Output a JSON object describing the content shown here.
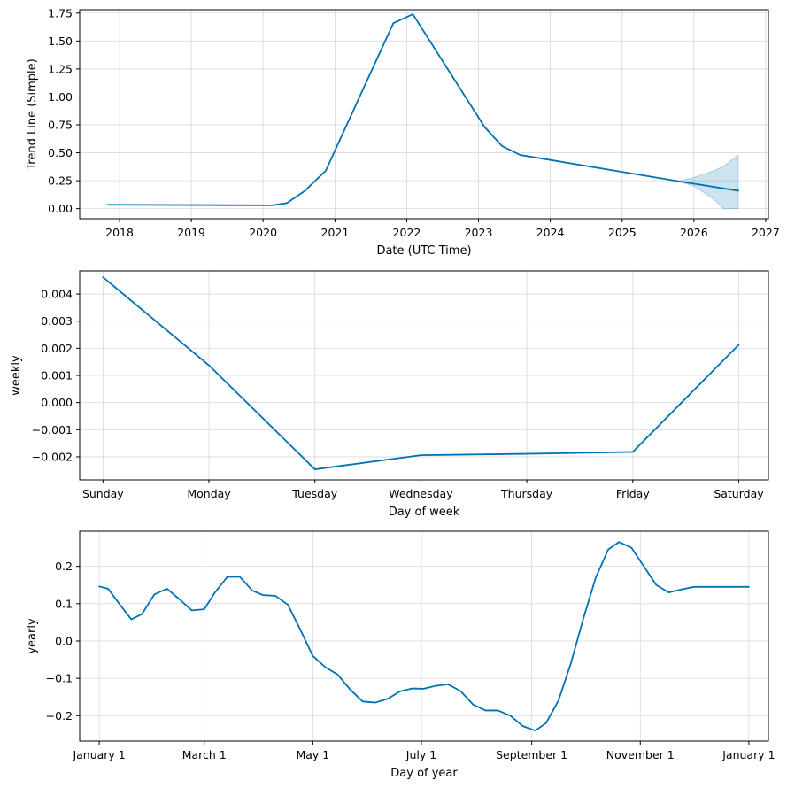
{
  "colors": {
    "line": "#0072B2",
    "band": "#0072B2",
    "grid": "#d9d9d9",
    "axes": "#000000",
    "background": "#ffffff"
  },
  "chart_data": [
    {
      "type": "line",
      "xlabel": "Date (UTC Time)",
      "ylabel": "Trend Line (Simple)",
      "x_axis": "date",
      "xlim": [
        "2017-06-12",
        "2027-01-15"
      ],
      "ylim": [
        -0.09,
        1.78
      ],
      "grid": true,
      "x_ticks": [
        {
          "value": "2018-01-01",
          "label": "2018"
        },
        {
          "value": "2019-01-01",
          "label": "2019"
        },
        {
          "value": "2020-01-01",
          "label": "2020"
        },
        {
          "value": "2021-01-01",
          "label": "2021"
        },
        {
          "value": "2022-01-01",
          "label": "2022"
        },
        {
          "value": "2023-01-01",
          "label": "2023"
        },
        {
          "value": "2024-01-01",
          "label": "2024"
        },
        {
          "value": "2025-01-01",
          "label": "2025"
        },
        {
          "value": "2026-01-01",
          "label": "2026"
        },
        {
          "value": "2027-01-01",
          "label": "2027"
        }
      ],
      "y_ticks": [
        {
          "value": 0.0,
          "label": "0.00"
        },
        {
          "value": 0.25,
          "label": "0.25"
        },
        {
          "value": 0.5,
          "label": "0.50"
        },
        {
          "value": 0.75,
          "label": "0.75"
        },
        {
          "value": 1.0,
          "label": "1.00"
        },
        {
          "value": 1.25,
          "label": "1.25"
        },
        {
          "value": 1.5,
          "label": "1.50"
        },
        {
          "value": 1.75,
          "label": "1.75"
        }
      ],
      "series": [
        {
          "x": [
            "2017-11-01",
            "2020-02-15",
            "2020-05-01",
            "2020-08-01",
            "2020-11-15",
            "2021-10-25",
            "2022-02-01",
            "2023-02-01",
            "2023-05-01",
            "2023-08-01",
            "2025-10-15",
            "2026-08-15"
          ],
          "y": [
            0.035,
            0.03,
            0.05,
            0.16,
            0.34,
            1.66,
            1.74,
            0.73,
            0.56,
            0.48,
            0.245,
            0.16
          ]
        }
      ],
      "uncertainty_band": {
        "x": [
          "2025-10-15",
          "2026-01-01",
          "2026-04-01",
          "2026-06-01",
          "2026-08-15"
        ],
        "upper": [
          0.245,
          0.28,
          0.33,
          0.38,
          0.48
        ],
        "lower": [
          0.245,
          0.2,
          0.1,
          0.0,
          0.0
        ]
      }
    },
    {
      "type": "line",
      "xlabel": "Day of week",
      "ylabel": "weekly",
      "x_axis": "category",
      "xlim": [
        -0.22,
        6.28
      ],
      "ylim": [
        -0.00285,
        0.00485
      ],
      "grid": true,
      "categories": [
        "Sunday",
        "Monday",
        "Tuesday",
        "Wednesday",
        "Thursday",
        "Friday",
        "Saturday"
      ],
      "y_ticks": [
        {
          "value": -0.002,
          "label": "−0.002"
        },
        {
          "value": -0.001,
          "label": "−0.001"
        },
        {
          "value": 0.0,
          "label": "0.000"
        },
        {
          "value": 0.001,
          "label": "0.001"
        },
        {
          "value": 0.002,
          "label": "0.002"
        },
        {
          "value": 0.003,
          "label": "0.003"
        },
        {
          "value": 0.004,
          "label": "0.004"
        }
      ],
      "series": [
        {
          "values": [
            0.00462,
            0.00137,
            -0.00246,
            -0.00194,
            -0.00189,
            -0.00182,
            0.00213
          ]
        }
      ]
    },
    {
      "type": "line",
      "xlabel": "Day of year",
      "ylabel": "yearly",
      "x_axis": "day_of_year",
      "xlim": [
        -11,
        376
      ],
      "ylim": [
        -0.268,
        0.294
      ],
      "grid": true,
      "x_ticks": [
        {
          "value": 0,
          "label": "January 1"
        },
        {
          "value": 59,
          "label": "March 1"
        },
        {
          "value": 120,
          "label": "May 1"
        },
        {
          "value": 181,
          "label": "July 1"
        },
        {
          "value": 243,
          "label": "September 1"
        },
        {
          "value": 304,
          "label": "November 1"
        },
        {
          "value": 365,
          "label": "January 1"
        }
      ],
      "y_ticks": [
        {
          "value": -0.2,
          "label": "−0.2"
        },
        {
          "value": -0.1,
          "label": "−0.1"
        },
        {
          "value": 0.0,
          "label": "0.0"
        },
        {
          "value": 0.1,
          "label": "0.1"
        },
        {
          "value": 0.2,
          "label": "0.2"
        }
      ],
      "series": [
        {
          "x": [
            0,
            5,
            12,
            18,
            24,
            31,
            38,
            45,
            52,
            59,
            65,
            72,
            79,
            86,
            92,
            99,
            106,
            113,
            120,
            127,
            134,
            141,
            148,
            155,
            162,
            169,
            176,
            182,
            189,
            196,
            203,
            210,
            217,
            224,
            231,
            238,
            245,
            251,
            258,
            265,
            272,
            279,
            286,
            292,
            299,
            306,
            313,
            320,
            327,
            334,
            341,
            348,
            355,
            360,
            365
          ],
          "y": [
            0.146,
            0.14,
            0.095,
            0.058,
            0.072,
            0.125,
            0.14,
            0.112,
            0.082,
            0.085,
            0.13,
            0.172,
            0.172,
            0.135,
            0.123,
            0.121,
            0.097,
            0.03,
            -0.04,
            -0.07,
            -0.09,
            -0.13,
            -0.162,
            -0.165,
            -0.155,
            -0.135,
            -0.127,
            -0.128,
            -0.12,
            -0.116,
            -0.134,
            -0.17,
            -0.186,
            -0.186,
            -0.2,
            -0.228,
            -0.24,
            -0.22,
            -0.16,
            -0.06,
            0.06,
            0.17,
            0.245,
            0.265,
            0.25,
            0.2,
            0.15,
            0.13,
            0.138,
            0.145,
            0.145,
            0.145,
            0.145,
            0.145,
            0.145
          ]
        }
      ]
    }
  ]
}
